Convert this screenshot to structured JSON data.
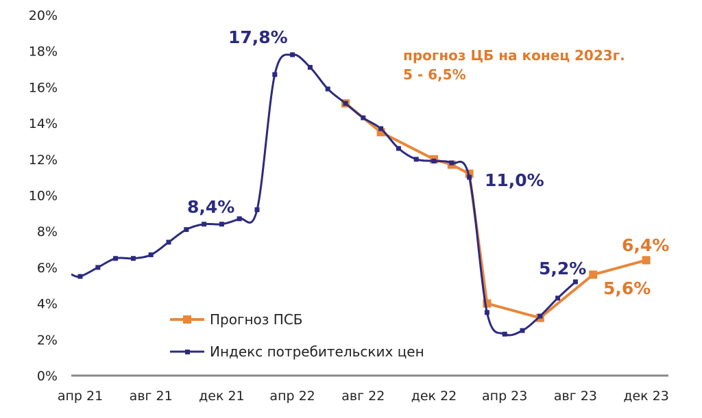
{
  "chart_data": {
    "type": "line",
    "yticks": [
      "0%",
      "2%",
      "4%",
      "6%",
      "8%",
      "10%",
      "12%",
      "14%",
      "16%",
      "18%",
      "20%"
    ],
    "ylim": [
      0,
      20
    ],
    "xticks": [
      {
        "label": "апр 21",
        "month": 0
      },
      {
        "label": "авг 21",
        "month": 4
      },
      {
        "label": "дек 21",
        "month": 8
      },
      {
        "label": "апр 22",
        "month": 12
      },
      {
        "label": "авг 22",
        "month": 16
      },
      {
        "label": "дек 22",
        "month": 20
      },
      {
        "label": "апр 23",
        "month": 24
      },
      {
        "label": "авг 23",
        "month": 28
      },
      {
        "label": "дек 23",
        "month": 32
      }
    ],
    "grid": false,
    "legend_position": "bottom-left",
    "series": [
      {
        "name": "Прогноз ПСБ",
        "color": "#e8873a",
        "smooth": false,
        "points": [
          {
            "date": "июл 22",
            "month": 15,
            "value": 15.1
          },
          {
            "date": "сен 22",
            "month": 17,
            "value": 13.5
          },
          {
            "date": "дек 22",
            "month": 20,
            "value": 12.0
          },
          {
            "date": "янв 23",
            "month": 21,
            "value": 11.7
          },
          {
            "date": "фев 23",
            "month": 22,
            "value": 11.2
          },
          {
            "date": "мар 23",
            "month": 23,
            "value": 4.0
          },
          {
            "date": "июн 23",
            "month": 26,
            "value": 3.2
          },
          {
            "date": "сен 23",
            "month": 29,
            "value": 5.6
          },
          {
            "date": "дек 23",
            "month": 32,
            "value": 6.4
          }
        ]
      },
      {
        "name": "Индекс потребительских цен",
        "color": "#2b2a80",
        "smooth": true,
        "points": [
          {
            "date": "апр 21",
            "month": 0,
            "value": 5.5
          },
          {
            "date": "май 21",
            "month": 1,
            "value": 6.0
          },
          {
            "date": "июн 21",
            "month": 2,
            "value": 6.5
          },
          {
            "date": "июл 21",
            "month": 3,
            "value": 6.5
          },
          {
            "date": "авг 21",
            "month": 4,
            "value": 6.7
          },
          {
            "date": "сен 21",
            "month": 5,
            "value": 7.4
          },
          {
            "date": "окт 21",
            "month": 6,
            "value": 8.1
          },
          {
            "date": "ноя 21",
            "month": 7,
            "value": 8.4
          },
          {
            "date": "дек 21",
            "month": 8,
            "value": 8.4
          },
          {
            "date": "янв 22",
            "month": 9,
            "value": 8.7
          },
          {
            "date": "фев 22",
            "month": 10,
            "value": 9.2
          },
          {
            "date": "мар 22",
            "month": 11,
            "value": 16.7
          },
          {
            "date": "апр 22",
            "month": 12,
            "value": 17.8
          },
          {
            "date": "май 22",
            "month": 13,
            "value": 17.1
          },
          {
            "date": "июн 22",
            "month": 14,
            "value": 15.9
          },
          {
            "date": "июл 22",
            "month": 15,
            "value": 15.1
          },
          {
            "date": "авг 22",
            "month": 16,
            "value": 14.3
          },
          {
            "date": "сен 22",
            "month": 17,
            "value": 13.7
          },
          {
            "date": "окт 22",
            "month": 18,
            "value": 12.6
          },
          {
            "date": "ноя 22",
            "month": 19,
            "value": 12.0
          },
          {
            "date": "дек 22",
            "month": 20,
            "value": 11.9
          },
          {
            "date": "янв 23",
            "month": 21,
            "value": 11.8
          },
          {
            "date": "фев 23",
            "month": 22,
            "value": 11.0
          },
          {
            "date": "мар 23",
            "month": 23,
            "value": 3.5
          },
          {
            "date": "апр 23",
            "month": 24,
            "value": 2.3
          },
          {
            "date": "май 23",
            "month": 25,
            "value": 2.5
          },
          {
            "date": "июн 23",
            "month": 26,
            "value": 3.3
          },
          {
            "date": "июл 23",
            "month": 27,
            "value": 4.3
          },
          {
            "date": "авг 23",
            "month": 28,
            "value": 5.2
          }
        ]
      }
    ],
    "annotations": [
      {
        "text": "17,8%",
        "color": "#2b2a80"
      },
      {
        "text": "8,4%",
        "color": "#2b2a80"
      },
      {
        "text": "11,0%",
        "color": "#2b2a80"
      },
      {
        "text": "5,2%",
        "color": "#2b2a80"
      },
      {
        "text": "6,4%",
        "color": "#e07a2c"
      },
      {
        "text": "5,6%",
        "color": "#e07a2c"
      }
    ],
    "note": {
      "line1": "прогноз  ЦБ на конец 2023г.",
      "line2": "5 - 6,5%",
      "color": "#e07a2c"
    }
  }
}
